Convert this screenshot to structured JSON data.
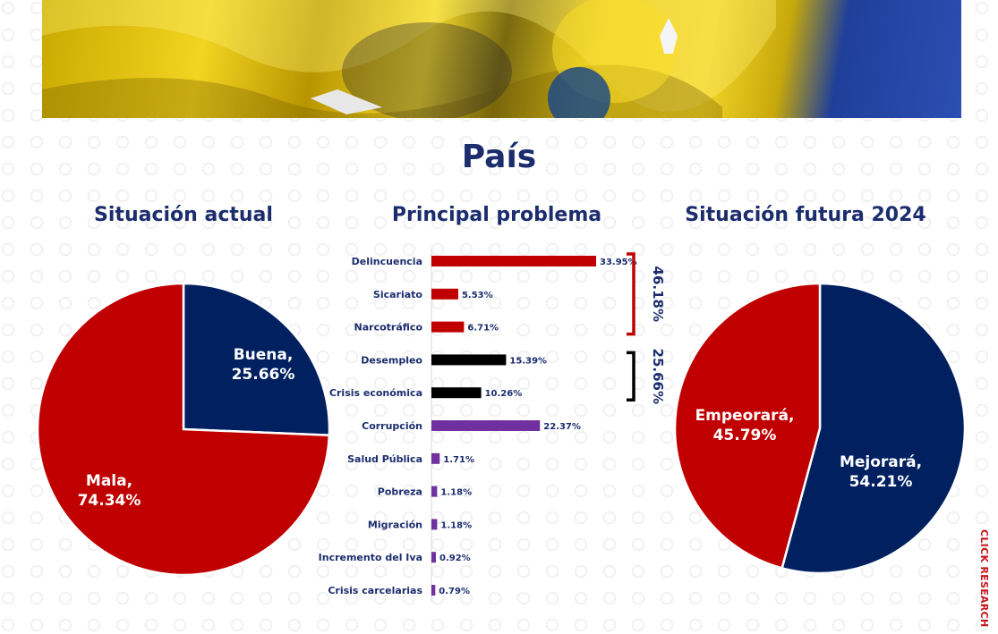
{
  "page": {
    "title": "País",
    "brand": "CLICK RESEARCH"
  },
  "colors": {
    "red": "#c00000",
    "navy": "#1c2d6e",
    "purple": "#7030a0",
    "black": "#000000"
  },
  "chart_data": [
    {
      "type": "pie",
      "title": "Situación actual",
      "slices": [
        {
          "name": "Buena",
          "value": 25.66,
          "label": "Buena,",
          "pct": "25.66%",
          "color": "#002060"
        },
        {
          "name": "Mala",
          "value": 74.34,
          "label": "Mala,",
          "pct": "74.34%",
          "color": "#c00000"
        }
      ]
    },
    {
      "type": "bar",
      "orientation": "horizontal",
      "title": "Principal problema",
      "categories": [
        "Delincuencia",
        "Sicariato",
        "Narcotráfico",
        "Desempleo",
        "Crisis económica",
        "Corrupción",
        "Salud Pública",
        "Pobreza",
        "Migración",
        "Incremento del Iva",
        "Crisis carcelarias"
      ],
      "values": [
        33.95,
        5.53,
        6.71,
        15.39,
        10.26,
        22.37,
        1.71,
        1.18,
        1.18,
        0.92,
        0.79
      ],
      "value_labels": [
        "33.95%",
        "5.53%",
        "6.71%",
        "15.39%",
        "10.26%",
        "22.37%",
        "1.71%",
        "1.18%",
        "1.18%",
        "0.92%",
        "0.79%"
      ],
      "colors": [
        "#c00000",
        "#c00000",
        "#c00000",
        "#000000",
        "#000000",
        "#7030a0",
        "#7030a0",
        "#7030a0",
        "#7030a0",
        "#7030a0",
        "#7030a0"
      ],
      "groups": [
        {
          "label": "46.18%",
          "from": 0,
          "to": 2,
          "color": "#c00000"
        },
        {
          "label": "25.66%",
          "from": 3,
          "to": 4,
          "color": "#000000"
        }
      ]
    },
    {
      "type": "pie",
      "title": "Situación futura 2024",
      "slices": [
        {
          "name": "Mejorará",
          "value": 54.21,
          "label": "Mejorará,",
          "pct": "54.21%",
          "color": "#002060"
        },
        {
          "name": "Empeorará",
          "value": 45.79,
          "label": "Empeorará,",
          "pct": "45.79%",
          "color": "#c00000"
        }
      ]
    }
  ]
}
